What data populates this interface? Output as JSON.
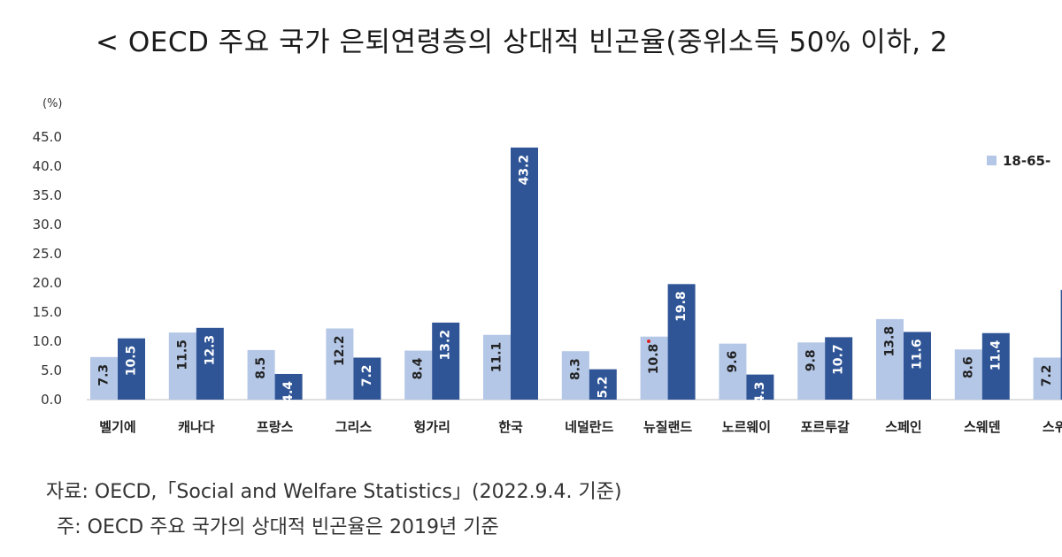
{
  "title": "< OECD 주요 국가 은퇴연령층의 상대적 빈곤율(중위소득 50% 이하, 2",
  "chart_data": {
    "type": "bar",
    "unit_label": "(%)",
    "categories": [
      "벨기에",
      "캐나다",
      "프랑스",
      "그리스",
      "헝가리",
      "한국",
      "네덜란드",
      "뉴질랜드",
      "노르웨이",
      "포르투갈",
      "스페인",
      "스웨덴",
      "스위스"
    ],
    "series": [
      {
        "name": "18-65-",
        "color": "#b4c7e7",
        "values": [
          7.3,
          11.5,
          8.5,
          12.2,
          8.4,
          11.1,
          8.3,
          10.8,
          9.6,
          9.8,
          13.8,
          8.6,
          7.2
        ]
      },
      {
        "color": "#2f5597",
        "values": [
          10.5,
          12.3,
          4.4,
          7.2,
          13.2,
          43.2,
          5.2,
          19.8,
          4.3,
          10.7,
          11.6,
          11.4,
          18.8
        ]
      }
    ],
    "yticks": [
      "0.0",
      "5.0",
      "10.0",
      "15.0",
      "20.0",
      "25.0",
      "30.0",
      "35.0",
      "40.0",
      "45.0"
    ],
    "ylim": [
      0,
      45
    ],
    "legend_position": "top-right",
    "grid": false
  },
  "source": "자료: OECD,「Social and Welfare Statistics」(2022.9.4. 기준)",
  "footnote": "주: OECD 주요 국가의 상대적 빈곤율은 2019년 기준"
}
